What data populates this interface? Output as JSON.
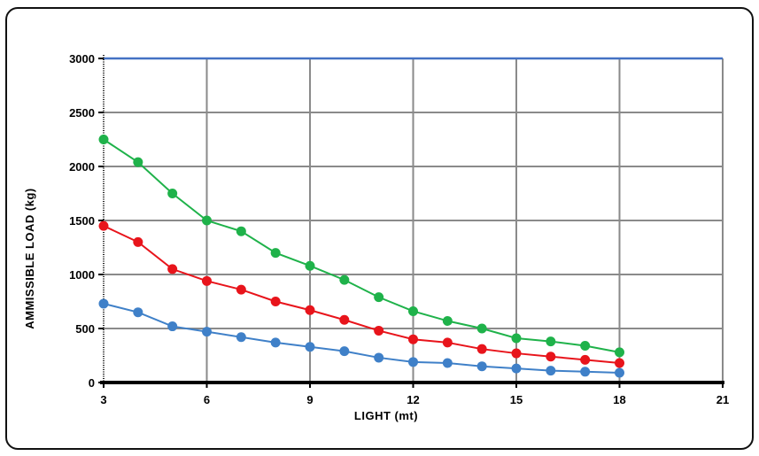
{
  "chart_data": {
    "type": "line",
    "title": "",
    "xlabel": "LIGHT (mt)",
    "ylabel": "AMMISSIBLE LOAD  (kg)",
    "xlim": [
      3,
      21
    ],
    "ylim": [
      0,
      3000
    ],
    "xticks": [
      3,
      6,
      9,
      12,
      15,
      18,
      21
    ],
    "yticks": [
      0,
      500,
      1000,
      1500,
      2000,
      2500,
      3000
    ],
    "grid": true,
    "legend": "none",
    "x": [
      3,
      4,
      5,
      6,
      7,
      8,
      9,
      10,
      11,
      12,
      13,
      14,
      15,
      16,
      17,
      18
    ],
    "series": [
      {
        "color": "#1fb24a",
        "values": [
          2250,
          2040,
          1750,
          1500,
          1400,
          1200,
          1080,
          950,
          790,
          660,
          570,
          500,
          410,
          380,
          340,
          280
        ]
      },
      {
        "color": "#e8141b",
        "values": [
          1450,
          1300,
          1050,
          940,
          860,
          750,
          670,
          580,
          480,
          400,
          370,
          310,
          270,
          240,
          210,
          180
        ]
      },
      {
        "color": "#3f80c8",
        "values": [
          730,
          650,
          520,
          470,
          420,
          370,
          330,
          290,
          230,
          190,
          180,
          150,
          130,
          110,
          100,
          90
        ]
      }
    ]
  }
}
